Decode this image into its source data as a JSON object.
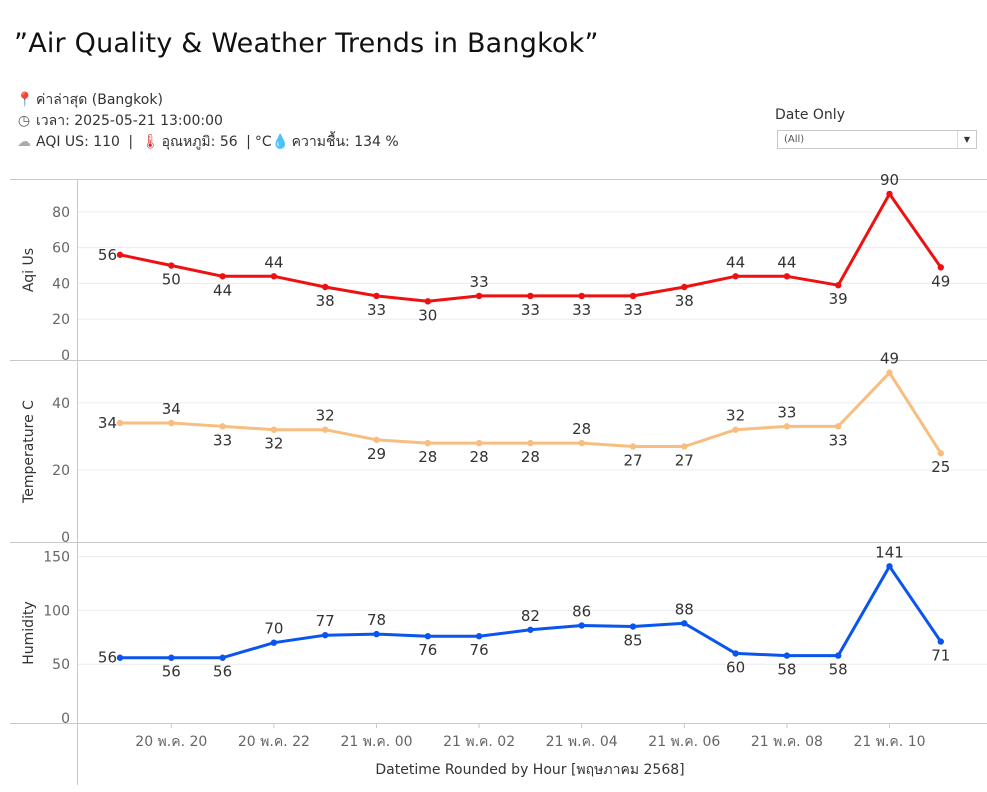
{
  "header": {
    "title": "”Air Quality & Weather Trends in Bangkok”",
    "line1_label": "ค่าล่าสุด",
    "line1_value": "(Bangkok)",
    "line2_label": "เวลา:",
    "line2_value": "2025-05-21 13:00:00",
    "aqi_text": "AQI US: 110",
    "temp_label": "อุณหภูมิ:",
    "temp_value": "56",
    "temp_unit": "°C",
    "hum_label": "ความชื้น:",
    "hum_value": "134 %"
  },
  "icons": [
    "pin-icon",
    "clock-icon",
    "smog-icon",
    "thermometer-icon",
    "droplet-icon"
  ],
  "filter": {
    "label": "Date Only",
    "value": "(All)"
  },
  "colors": {
    "aqi": "#ee1111",
    "temperature": "#f7be80",
    "humidity": "#0a55ee",
    "grid": "#ececec",
    "axis": "#c8c8c8"
  },
  "chart_data": {
    "type": "line",
    "xlabel": "Datetime Rounded by Hour [พฤษภาคม 2568]",
    "x": [
      "20 พ.ค. 19",
      "20 พ.ค. 20",
      "20 พ.ค. 21",
      "20 พ.ค. 22",
      "20 พ.ค. 23",
      "21 พ.ค. 00",
      "21 พ.ค. 01",
      "21 พ.ค. 02",
      "21 พ.ค. 03",
      "21 พ.ค. 04",
      "21 พ.ค. 05",
      "21 พ.ค. 06",
      "21 พ.ค. 07",
      "21 พ.ค. 08",
      "21 พ.ค. 09",
      "21 พ.ค. 10",
      "21 พ.ค. 11"
    ],
    "tick_labels": [
      "20 พ.ค. 20",
      "20 พ.ค. 22",
      "21 พ.ค. 00",
      "21 พ.ค. 02",
      "21 พ.ค. 04",
      "21 พ.ค. 06",
      "21 พ.ค. 08",
      "21 พ.ค. 10"
    ],
    "panels": [
      {
        "ylabel": "Aqi Us",
        "ylim": [
          0,
          95
        ],
        "yticks": [
          0,
          20,
          40,
          60,
          80
        ],
        "color": "#ee1111",
        "values": [
          56,
          50,
          44,
          44,
          38,
          33,
          30,
          33,
          33,
          33,
          33,
          38,
          44,
          44,
          39,
          90,
          49
        ],
        "label_pos": [
          "left",
          "below",
          "below",
          "above",
          "below",
          "below",
          "below",
          "above",
          "below",
          "below",
          "below",
          "below",
          "above",
          "above",
          "below",
          "above",
          "below"
        ]
      },
      {
        "ylabel": "Temperature C",
        "ylim": [
          0,
          51
        ],
        "yticks": [
          0,
          20,
          40
        ],
        "color": "#f7be80",
        "values": [
          34,
          34,
          33,
          32,
          32,
          29,
          28,
          28,
          28,
          28,
          27,
          27,
          32,
          33,
          33,
          49,
          25
        ],
        "label_pos": [
          "left",
          "above",
          "below",
          "below",
          "above",
          "below",
          "below",
          "below",
          "below",
          "above",
          "below",
          "below",
          "above",
          "above",
          "below",
          "above",
          "below"
        ]
      },
      {
        "ylabel": "Humidity",
        "ylim": [
          0,
          158
        ],
        "yticks": [
          0,
          50,
          100,
          150
        ],
        "color": "#0a55ee",
        "values": [
          56,
          56,
          56,
          70,
          77,
          78,
          76,
          76,
          82,
          86,
          85,
          88,
          60,
          58,
          58,
          141,
          71
        ],
        "label_pos": [
          "left",
          "below",
          "below",
          "above",
          "above",
          "above",
          "below",
          "below",
          "above",
          "above",
          "below",
          "above",
          "below",
          "below",
          "below",
          "above",
          "below"
        ]
      }
    ]
  }
}
